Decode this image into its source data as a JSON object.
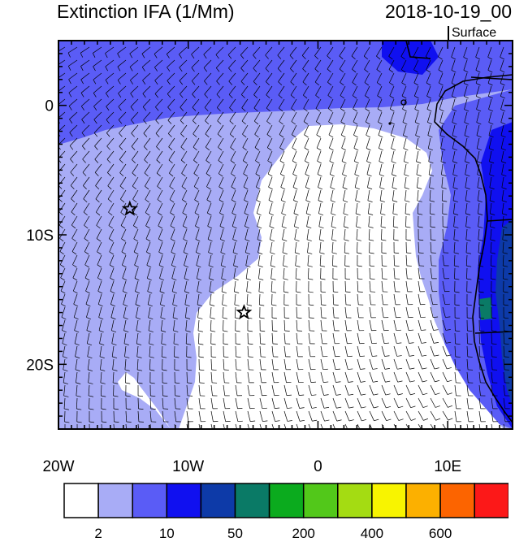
{
  "title": "Extinction IFA (1/Mm)",
  "timestamp": "2018-10-19_00",
  "level_label": "Surface",
  "map": {
    "lon_range": [
      -20,
      15
    ],
    "lat_range": [
      -25,
      5
    ],
    "x_ticks": [
      {
        "lon": -20,
        "label": "20W"
      },
      {
        "lon": -10,
        "label": "10W"
      },
      {
        "lon": 0,
        "label": "0"
      },
      {
        "lon": 10,
        "label": "10E"
      }
    ],
    "y_ticks": [
      {
        "lat": 0,
        "label": "0"
      },
      {
        "lat": -10,
        "label": "10S"
      },
      {
        "lat": -20,
        "label": "20S"
      }
    ],
    "markers": [
      {
        "name": "star-marker-1",
        "lon": -14.5,
        "lat": -8.0
      },
      {
        "name": "star-marker-2",
        "lon": -5.7,
        "lat": -16.0
      }
    ]
  },
  "colorbar": {
    "colors": [
      "#ffffff",
      "#a8acf6",
      "#5a5cf6",
      "#1010f0",
      "#0d3aa8",
      "#0a7a66",
      "#0bab1e",
      "#52c81a",
      "#a4dc12",
      "#f8f400",
      "#fcb000",
      "#fc6400",
      "#fc1818"
    ],
    "labels": [
      {
        "after_box": 1,
        "text": "2"
      },
      {
        "after_box": 3,
        "text": "10"
      },
      {
        "after_box": 5,
        "text": "50"
      },
      {
        "after_box": 7,
        "text": "200"
      },
      {
        "after_box": 9,
        "text": "400"
      },
      {
        "after_box": 11,
        "text": "600"
      }
    ]
  }
}
